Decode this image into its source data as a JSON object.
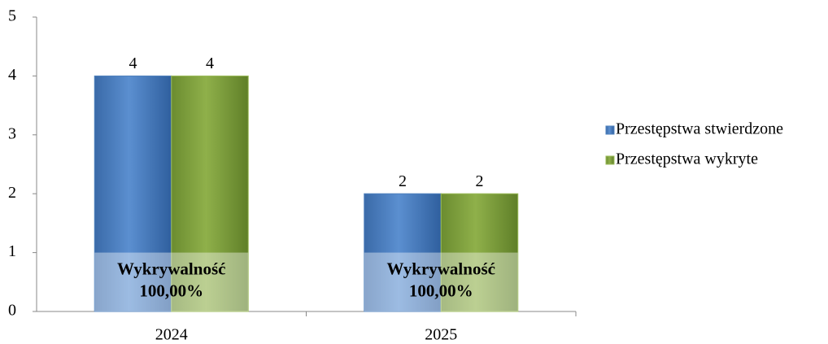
{
  "chart_data": {
    "type": "bar",
    "categories": [
      "2024",
      "2025"
    ],
    "series": [
      {
        "name": "Przestępstwa stwierdzone",
        "color": "#4f81bd",
        "values": [
          4,
          2
        ]
      },
      {
        "name": "Przestępstwa wykryte",
        "color": "#9bbb59",
        "values": [
          4,
          2
        ]
      }
    ],
    "annotations": [
      [
        "Wykrywalność",
        "100,00%"
      ],
      [
        "Wykrywalność",
        "100,00%"
      ]
    ],
    "ylim": [
      0,
      5
    ],
    "yticks": [
      0,
      1,
      2,
      3,
      4,
      5
    ],
    "legend": "right"
  }
}
